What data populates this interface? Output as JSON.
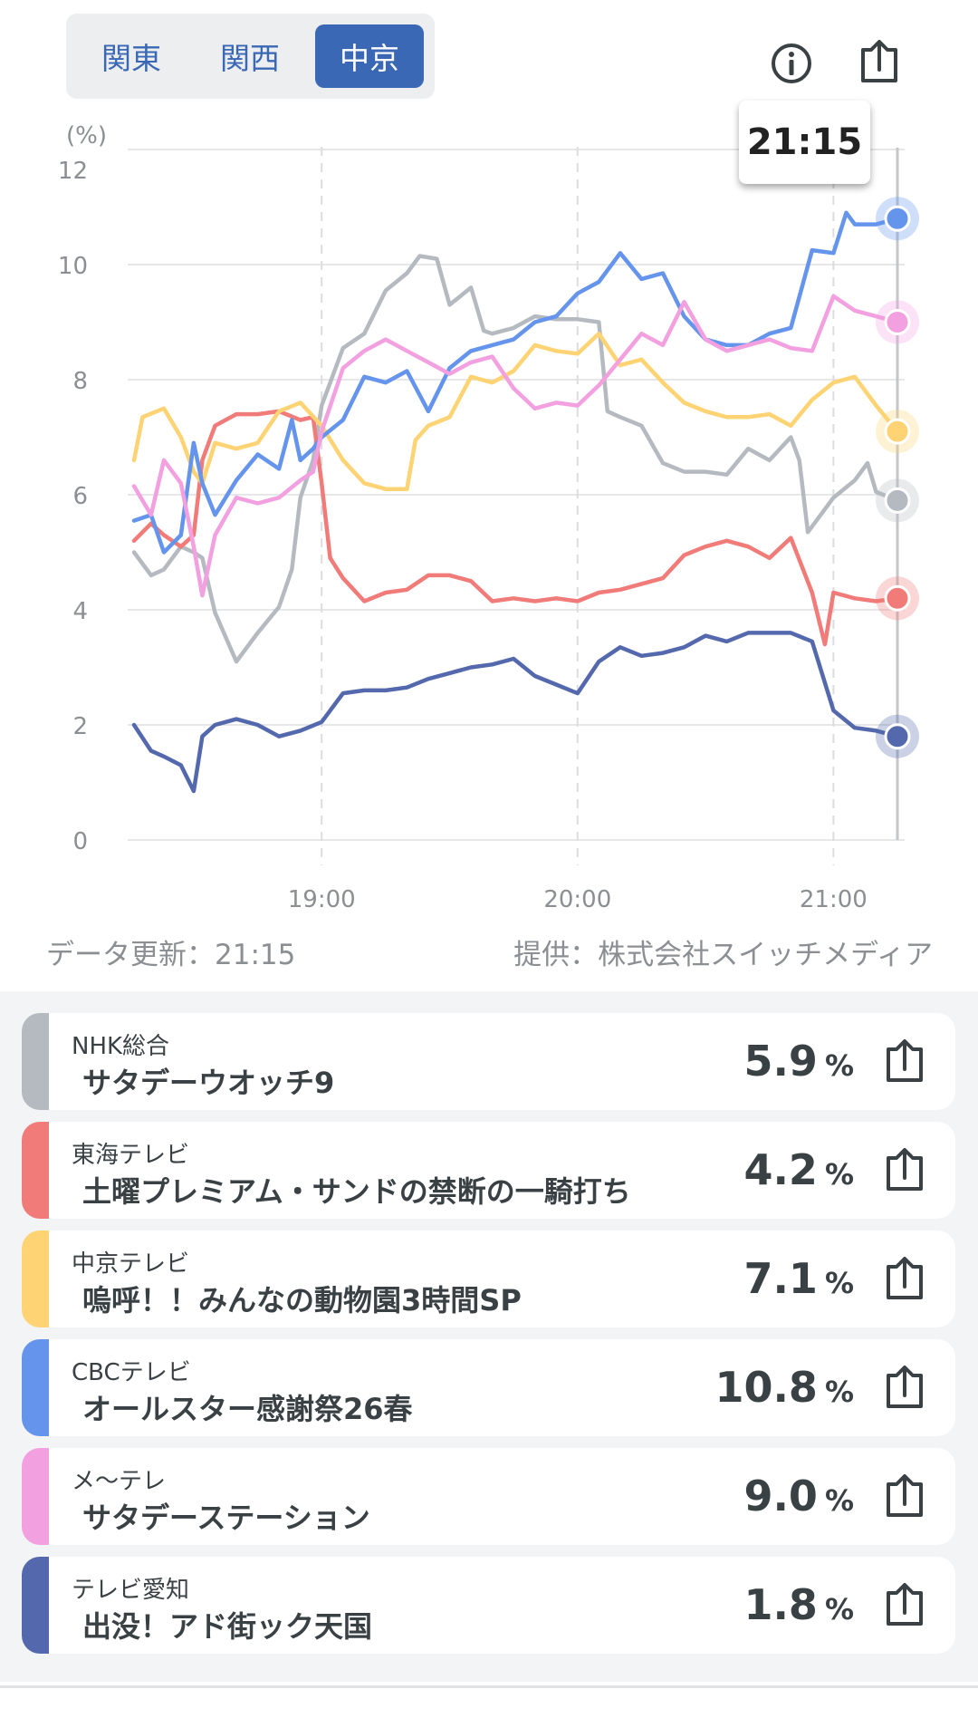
{
  "region_tabs": [
    {
      "label": "関東",
      "active": false
    },
    {
      "label": "関西",
      "active": false
    },
    {
      "label": "中京",
      "active": true
    }
  ],
  "header_icons": {
    "info": "info-icon",
    "share": "share-icon"
  },
  "tooltip": {
    "time": "21:15"
  },
  "footer": {
    "updated": "データ更新：21:15",
    "provider": "提供：株式会社スイッチメディア"
  },
  "chart_data": {
    "type": "line",
    "y_unit_label": "(%)",
    "ylim": [
      0,
      12
    ],
    "yticks": [
      "0",
      "2",
      "4",
      "6",
      "8",
      "10",
      "12"
    ],
    "xticks": [
      "19:00",
      "20:00",
      "21:00"
    ],
    "x_range": [
      "18:16",
      "21:15"
    ],
    "cursor_time": "21:15",
    "grid": true,
    "series": [
      {
        "name": "NHK総合",
        "color": "#b5bac1",
        "points": [
          [
            "18:16",
            5.0
          ],
          [
            "18:20",
            4.6
          ],
          [
            "18:23",
            4.7
          ],
          [
            "18:27",
            5.1
          ],
          [
            "18:30",
            5.0
          ],
          [
            "18:32",
            4.9
          ],
          [
            "18:35",
            3.95
          ],
          [
            "18:40",
            3.1
          ],
          [
            "18:45",
            3.6
          ],
          [
            "18:50",
            4.05
          ],
          [
            "18:53",
            4.7
          ],
          [
            "18:55",
            5.95
          ],
          [
            "18:58",
            6.6
          ],
          [
            "19:00",
            7.55
          ],
          [
            "19:05",
            8.55
          ],
          [
            "19:10",
            8.8
          ],
          [
            "19:15",
            9.55
          ],
          [
            "19:20",
            9.85
          ],
          [
            "19:23",
            10.15
          ],
          [
            "19:27",
            10.1
          ],
          [
            "19:30",
            9.3
          ],
          [
            "19:35",
            9.6
          ],
          [
            "19:38",
            8.85
          ],
          [
            "19:40",
            8.8
          ],
          [
            "19:45",
            8.9
          ],
          [
            "19:50",
            9.1
          ],
          [
            "19:55",
            9.05
          ],
          [
            "20:00",
            9.05
          ],
          [
            "20:05",
            9.0
          ],
          [
            "20:07",
            7.45
          ],
          [
            "20:10",
            7.35
          ],
          [
            "20:15",
            7.2
          ],
          [
            "20:20",
            6.55
          ],
          [
            "20:25",
            6.4
          ],
          [
            "20:30",
            6.4
          ],
          [
            "20:35",
            6.35
          ],
          [
            "20:40",
            6.8
          ],
          [
            "20:45",
            6.6
          ],
          [
            "20:50",
            7.0
          ],
          [
            "20:52",
            6.6
          ],
          [
            "20:54",
            5.35
          ],
          [
            "21:00",
            5.95
          ],
          [
            "21:05",
            6.25
          ],
          [
            "21:08",
            6.55
          ],
          [
            "21:10",
            6.05
          ],
          [
            "21:15",
            5.9
          ]
        ]
      },
      {
        "name": "東海テレビ",
        "color": "#f07b78",
        "points": [
          [
            "18:16",
            5.2
          ],
          [
            "18:20",
            5.5
          ],
          [
            "18:23",
            5.3
          ],
          [
            "18:27",
            5.1
          ],
          [
            "18:30",
            5.3
          ],
          [
            "18:32",
            6.6
          ],
          [
            "18:35",
            7.2
          ],
          [
            "18:40",
            7.4
          ],
          [
            "18:45",
            7.4
          ],
          [
            "18:50",
            7.45
          ],
          [
            "18:55",
            7.3
          ],
          [
            "18:58",
            7.35
          ],
          [
            "19:00",
            6.2
          ],
          [
            "19:02",
            4.9
          ],
          [
            "19:05",
            4.55
          ],
          [
            "19:10",
            4.15
          ],
          [
            "19:15",
            4.3
          ],
          [
            "19:20",
            4.35
          ],
          [
            "19:25",
            4.6
          ],
          [
            "19:30",
            4.6
          ],
          [
            "19:35",
            4.5
          ],
          [
            "19:40",
            4.15
          ],
          [
            "19:45",
            4.2
          ],
          [
            "19:50",
            4.15
          ],
          [
            "19:55",
            4.2
          ],
          [
            "20:00",
            4.15
          ],
          [
            "20:05",
            4.3
          ],
          [
            "20:10",
            4.35
          ],
          [
            "20:15",
            4.45
          ],
          [
            "20:20",
            4.55
          ],
          [
            "20:25",
            4.95
          ],
          [
            "20:30",
            5.1
          ],
          [
            "20:35",
            5.2
          ],
          [
            "20:40",
            5.1
          ],
          [
            "20:45",
            4.9
          ],
          [
            "20:50",
            5.25
          ],
          [
            "20:55",
            4.3
          ],
          [
            "20:58",
            3.4
          ],
          [
            "21:00",
            4.3
          ],
          [
            "21:05",
            4.2
          ],
          [
            "21:10",
            4.15
          ],
          [
            "21:15",
            4.2
          ]
        ]
      },
      {
        "name": "中京テレビ",
        "color": "#fdd373",
        "points": [
          [
            "18:16",
            6.6
          ],
          [
            "18:18",
            7.35
          ],
          [
            "18:23",
            7.5
          ],
          [
            "18:27",
            7.0
          ],
          [
            "18:30",
            6.4
          ],
          [
            "18:32",
            6.2
          ],
          [
            "18:35",
            6.9
          ],
          [
            "18:40",
            6.8
          ],
          [
            "18:45",
            6.9
          ],
          [
            "18:50",
            7.45
          ],
          [
            "18:55",
            7.6
          ],
          [
            "19:00",
            7.2
          ],
          [
            "19:05",
            6.6
          ],
          [
            "19:10",
            6.2
          ],
          [
            "19:15",
            6.1
          ],
          [
            "19:20",
            6.1
          ],
          [
            "19:22",
            6.95
          ],
          [
            "19:25",
            7.2
          ],
          [
            "19:30",
            7.35
          ],
          [
            "19:35",
            8.05
          ],
          [
            "19:40",
            7.95
          ],
          [
            "19:45",
            8.15
          ],
          [
            "19:50",
            8.6
          ],
          [
            "19:55",
            8.5
          ],
          [
            "20:00",
            8.45
          ],
          [
            "20:05",
            8.8
          ],
          [
            "20:10",
            8.25
          ],
          [
            "20:15",
            8.35
          ],
          [
            "20:20",
            7.95
          ],
          [
            "20:25",
            7.6
          ],
          [
            "20:30",
            7.45
          ],
          [
            "20:35",
            7.35
          ],
          [
            "20:40",
            7.35
          ],
          [
            "20:45",
            7.4
          ],
          [
            "20:50",
            7.2
          ],
          [
            "20:55",
            7.65
          ],
          [
            "21:00",
            7.95
          ],
          [
            "21:05",
            8.05
          ],
          [
            "21:10",
            7.55
          ],
          [
            "21:15",
            7.1
          ]
        ]
      },
      {
        "name": "CBCテレビ",
        "color": "#6594ec",
        "points": [
          [
            "18:16",
            5.55
          ],
          [
            "18:20",
            5.65
          ],
          [
            "18:23",
            5.0
          ],
          [
            "18:27",
            5.3
          ],
          [
            "18:30",
            6.9
          ],
          [
            "18:32",
            6.2
          ],
          [
            "18:35",
            5.65
          ],
          [
            "18:40",
            6.25
          ],
          [
            "18:45",
            6.7
          ],
          [
            "18:50",
            6.45
          ],
          [
            "18:53",
            7.3
          ],
          [
            "18:55",
            6.6
          ],
          [
            "18:58",
            6.8
          ],
          [
            "19:00",
            7.0
          ],
          [
            "19:05",
            7.3
          ],
          [
            "19:10",
            8.05
          ],
          [
            "19:15",
            7.95
          ],
          [
            "19:20",
            8.15
          ],
          [
            "19:25",
            7.45
          ],
          [
            "19:30",
            8.2
          ],
          [
            "19:35",
            8.5
          ],
          [
            "19:40",
            8.6
          ],
          [
            "19:45",
            8.7
          ],
          [
            "19:50",
            9.0
          ],
          [
            "19:55",
            9.1
          ],
          [
            "20:00",
            9.5
          ],
          [
            "20:05",
            9.7
          ],
          [
            "20:10",
            10.2
          ],
          [
            "20:15",
            9.75
          ],
          [
            "20:20",
            9.85
          ],
          [
            "20:25",
            9.1
          ],
          [
            "20:30",
            8.7
          ],
          [
            "20:35",
            8.6
          ],
          [
            "20:40",
            8.6
          ],
          [
            "20:45",
            8.8
          ],
          [
            "20:50",
            8.9
          ],
          [
            "20:55",
            10.25
          ],
          [
            "21:00",
            10.2
          ],
          [
            "21:03",
            10.9
          ],
          [
            "21:05",
            10.7
          ],
          [
            "21:10",
            10.7
          ],
          [
            "21:15",
            10.8
          ]
        ]
      },
      {
        "name": "メ〜テレ",
        "color": "#f3a0e0",
        "points": [
          [
            "18:16",
            6.15
          ],
          [
            "18:20",
            5.65
          ],
          [
            "18:23",
            6.6
          ],
          [
            "18:27",
            6.2
          ],
          [
            "18:30",
            5.1
          ],
          [
            "18:32",
            4.25
          ],
          [
            "18:35",
            5.3
          ],
          [
            "18:40",
            5.95
          ],
          [
            "18:45",
            5.85
          ],
          [
            "18:50",
            5.95
          ],
          [
            "18:55",
            6.25
          ],
          [
            "18:58",
            6.4
          ],
          [
            "19:00",
            7.1
          ],
          [
            "19:05",
            8.2
          ],
          [
            "19:10",
            8.5
          ],
          [
            "19:15",
            8.7
          ],
          [
            "19:20",
            8.5
          ],
          [
            "19:25",
            8.3
          ],
          [
            "19:30",
            8.1
          ],
          [
            "19:35",
            8.3
          ],
          [
            "19:40",
            8.4
          ],
          [
            "19:45",
            7.85
          ],
          [
            "19:50",
            7.5
          ],
          [
            "19:55",
            7.6
          ],
          [
            "20:00",
            7.55
          ],
          [
            "20:05",
            7.9
          ],
          [
            "20:10",
            8.35
          ],
          [
            "20:15",
            8.8
          ],
          [
            "20:20",
            8.6
          ],
          [
            "20:25",
            9.35
          ],
          [
            "20:30",
            8.7
          ],
          [
            "20:35",
            8.5
          ],
          [
            "20:40",
            8.6
          ],
          [
            "20:45",
            8.7
          ],
          [
            "20:50",
            8.55
          ],
          [
            "20:55",
            8.5
          ],
          [
            "21:00",
            9.45
          ],
          [
            "21:05",
            9.2
          ],
          [
            "21:10",
            9.1
          ],
          [
            "21:15",
            9.0
          ]
        ]
      },
      {
        "name": "テレビ愛知",
        "color": "#5469ad",
        "points": [
          [
            "18:16",
            2.0
          ],
          [
            "18:20",
            1.55
          ],
          [
            "18:23",
            1.45
          ],
          [
            "18:27",
            1.3
          ],
          [
            "18:30",
            0.85
          ],
          [
            "18:32",
            1.8
          ],
          [
            "18:35",
            2.0
          ],
          [
            "18:40",
            2.1
          ],
          [
            "18:45",
            2.0
          ],
          [
            "18:50",
            1.8
          ],
          [
            "18:55",
            1.9
          ],
          [
            "19:00",
            2.05
          ],
          [
            "19:05",
            2.55
          ],
          [
            "19:10",
            2.6
          ],
          [
            "19:15",
            2.6
          ],
          [
            "19:20",
            2.65
          ],
          [
            "19:25",
            2.8
          ],
          [
            "19:30",
            2.9
          ],
          [
            "19:35",
            3.0
          ],
          [
            "19:40",
            3.05
          ],
          [
            "19:45",
            3.15
          ],
          [
            "19:50",
            2.85
          ],
          [
            "19:55",
            2.7
          ],
          [
            "20:00",
            2.55
          ],
          [
            "20:05",
            3.1
          ],
          [
            "20:10",
            3.35
          ],
          [
            "20:15",
            3.2
          ],
          [
            "20:20",
            3.25
          ],
          [
            "20:25",
            3.35
          ],
          [
            "20:30",
            3.55
          ],
          [
            "20:35",
            3.45
          ],
          [
            "20:40",
            3.6
          ],
          [
            "20:45",
            3.6
          ],
          [
            "20:50",
            3.6
          ],
          [
            "20:55",
            3.45
          ],
          [
            "21:00",
            2.25
          ],
          [
            "21:05",
            1.95
          ],
          [
            "21:10",
            1.9
          ],
          [
            "21:15",
            1.8
          ]
        ]
      }
    ]
  },
  "programs": [
    {
      "channel": "NHK総合",
      "title": "サタデーウオッチ9",
      "value": "5.9",
      "unit": "%",
      "color": "#b5bac1"
    },
    {
      "channel": "東海テレビ",
      "title": "土曜プレミアム・サンドの禁断の一騎打ち",
      "value": "4.2",
      "unit": "%",
      "color": "#f07b78"
    },
    {
      "channel": "中京テレビ",
      "title": "嗚呼！！みんなの動物園3時間SP",
      "value": "7.1",
      "unit": "%",
      "color": "#fdd373"
    },
    {
      "channel": "CBCテレビ",
      "title": "オールスター感謝祭26春",
      "value": "10.8",
      "unit": "%",
      "color": "#6594ec"
    },
    {
      "channel": "メ〜テレ",
      "title": "サタデーステーション",
      "value": "9.0",
      "unit": "%",
      "color": "#f3a0e0"
    },
    {
      "channel": "テレビ愛知",
      "title": "出没！アド街ック天国",
      "value": "1.8",
      "unit": "%",
      "color": "#5469ad"
    }
  ]
}
